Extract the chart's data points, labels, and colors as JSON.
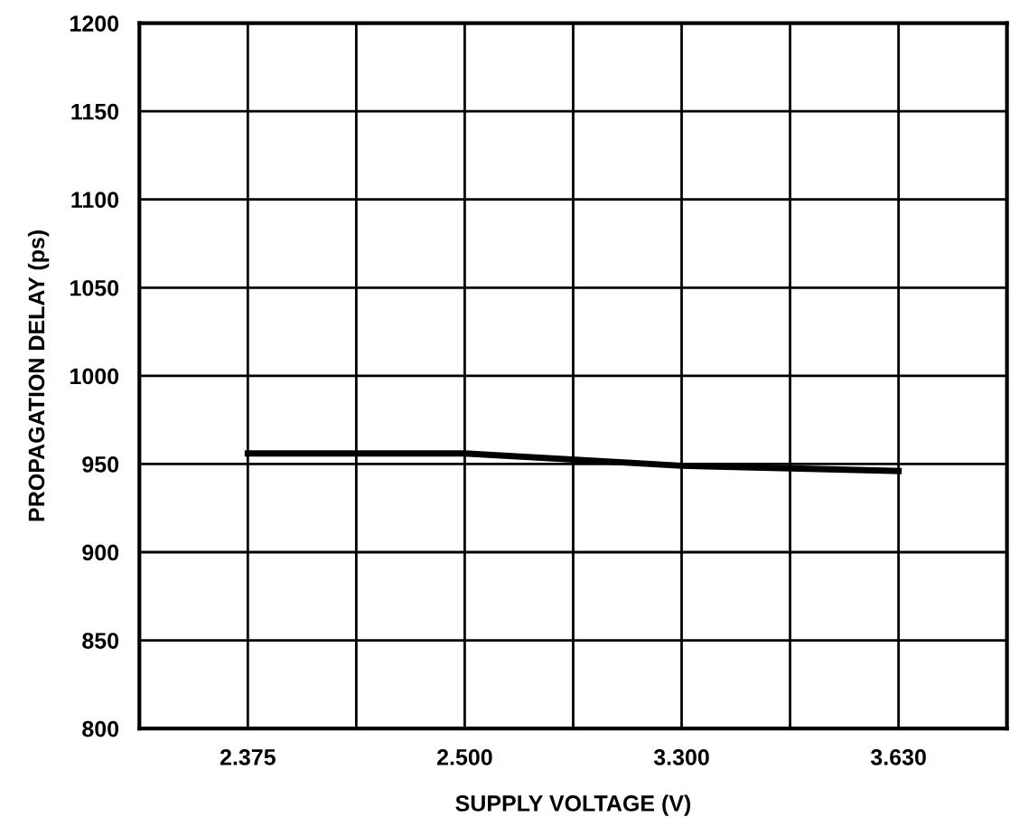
{
  "chart_data": {
    "type": "line",
    "xlabel": "SUPPLY VOLTAGE (V)",
    "ylabel": "PROPAGATION DELAY (ps)",
    "categories": [
      "2.375",
      "2.500",
      "3.300",
      "3.630"
    ],
    "series": [
      {
        "color": "#000000",
        "values": [
          956,
          956,
          949,
          946
        ]
      }
    ],
    "ylim": [
      800,
      1200
    ],
    "yticks": [
      800,
      850,
      900,
      950,
      1000,
      1050,
      1100,
      1150,
      1200
    ],
    "grid": true,
    "marker": "none",
    "line_style": "solid"
  }
}
